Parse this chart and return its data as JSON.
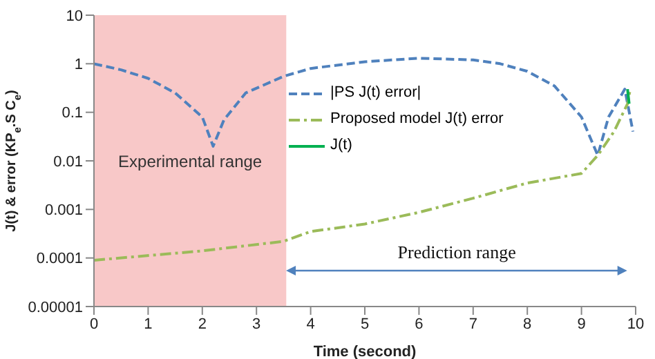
{
  "chart_data": {
    "type": "line",
    "xlabel": "Time (second)",
    "ylabel": "J(t) & error (KP$_{e}$.S C$_{e}$)",
    "log": "y",
    "xlim": [
      0,
      10
    ],
    "xticks": [
      0,
      1,
      2,
      3,
      4,
      5,
      6,
      7,
      8,
      9,
      10
    ],
    "ylim": [
      1e-05,
      10
    ],
    "yticks": [
      {
        "value": 1e-05,
        "label": "0.00001"
      },
      0.0001,
      0.001,
      0.01,
      0.1,
      1,
      10
    ],
    "grid": false,
    "legend": "top right",
    "marker": "none",
    "bands": [
      {
        "axis": "x",
        "from": 0,
        "to": 3.55,
        "label": "Experimental range",
        "color": "#f8c8c8"
      }
    ],
    "annotations": [
      "Prediction range"
    ],
    "series": [
      {
        "name": "|PS J(t) error|",
        "color": "#4f81bd",
        "line_style": "dashed",
        "x": [
          0,
          0.5,
          1,
          1.5,
          2,
          2.2,
          2.4,
          2.8,
          3.5,
          4,
          5,
          6,
          7,
          7.5,
          8,
          8.5,
          9,
          9.3,
          9.5,
          9.8,
          9.95
        ],
        "values": [
          1,
          0.75,
          0.5,
          0.25,
          0.08,
          0.02,
          0.07,
          0.25,
          0.55,
          0.8,
          1.1,
          1.3,
          1.2,
          1,
          0.7,
          0.35,
          0.08,
          0.013,
          0.08,
          0.3,
          0.04
        ]
      },
      {
        "name": "Proposed model J(t) error",
        "color": "#9bbb59",
        "line_style": "dashdot",
        "x": [
          0,
          2,
          3.5,
          4,
          5,
          6,
          7,
          8,
          9,
          9.3,
          9.6,
          9.85,
          9.9
        ],
        "values": [
          9e-05,
          0.00014,
          0.00022,
          0.00035,
          0.0005,
          0.00087,
          0.0017,
          0.0035,
          0.0055,
          0.013,
          0.04,
          0.15,
          0.3
        ]
      },
      {
        "name": "J(t)",
        "color": "#00b050",
        "line_style": "solid",
        "x": [
          9.85,
          9.88
        ],
        "values": [
          0.3,
          0.15
        ]
      }
    ]
  }
}
